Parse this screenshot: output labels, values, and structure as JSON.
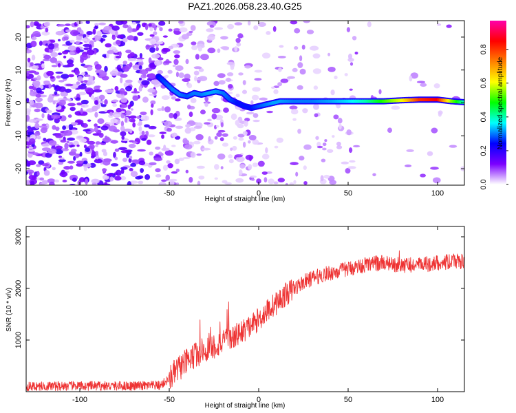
{
  "title": "PAZ1.2026.058.23.40.G25",
  "chart_data": [
    {
      "type": "heatmap",
      "xlabel": "Height of straight line (km)",
      "ylabel": "Frequency (Hz)",
      "xlim": [
        -130,
        115
      ],
      "ylim": [
        -25,
        25
      ],
      "xticks": [
        -100,
        -50,
        0,
        50,
        100
      ],
      "yticks": [
        20,
        10,
        0,
        -10,
        -20
      ],
      "colorbar": {
        "label": "Normalized spectral amplitude",
        "range": [
          0,
          0.97
        ],
        "ticks": [
          "0.0",
          "0.2",
          "0.4",
          "0.6",
          "0.8"
        ],
        "colors": [
          "#ffffff",
          "#7b00ff",
          "#0000ff",
          "#00ffff",
          "#00ff00",
          "#ffff00",
          "#ff8000",
          "#ff0000",
          "#ff00aa"
        ]
      },
      "ridge": {
        "x": [
          -56,
          -52,
          -48,
          -44,
          -40,
          -36,
          -32,
          -28,
          -24,
          -20,
          -16,
          -12,
          -8,
          -4,
          0,
          4,
          8,
          12,
          20,
          30,
          40,
          50,
          60,
          70,
          80,
          90,
          100,
          108,
          115
        ],
        "y": [
          8,
          6,
          4,
          2.5,
          2,
          3,
          2.5,
          3,
          3.5,
          3,
          1,
          0,
          -1,
          -1.5,
          -1,
          -0.5,
          0,
          0.5,
          0.5,
          0.5,
          0.5,
          0.5,
          0.5,
          0.5,
          0.8,
          1,
          1,
          0.5,
          0.2
        ],
        "amplitude": [
          0.25,
          0.28,
          0.3,
          0.3,
          0.28,
          0.3,
          0.3,
          0.32,
          0.32,
          0.3,
          0.28,
          0.25,
          0.25,
          0.25,
          0.28,
          0.3,
          0.32,
          0.32,
          0.3,
          0.3,
          0.32,
          0.35,
          0.4,
          0.5,
          0.6,
          0.8,
          0.85,
          0.55,
          0.4
        ]
      }
    },
    {
      "type": "line",
      "xlabel": "Height of straight line (km)",
      "ylabel": "SNR (10 * v/v)",
      "xlim": [
        -130,
        115
      ],
      "ylim": [
        0,
        3200
      ],
      "xticks": [
        -100,
        -50,
        0,
        50,
        100
      ],
      "yticks": [
        1000,
        2000,
        3000
      ],
      "series": [
        {
          "name": "SNR",
          "color": "#ee3333",
          "x": [
            -130,
            -110,
            -90,
            -70,
            -55,
            -50,
            -45,
            -40,
            -35,
            -30,
            -25,
            -20,
            -15,
            -10,
            -5,
            0,
            5,
            10,
            15,
            20,
            25,
            30,
            35,
            40,
            50,
            60,
            70,
            80,
            90,
            100,
            110,
            115
          ],
          "y": [
            100,
            110,
            110,
            110,
            120,
            250,
            450,
            580,
            720,
            800,
            880,
            960,
            1040,
            1150,
            1260,
            1400,
            1580,
            1720,
            1880,
            2000,
            2120,
            2200,
            2250,
            2300,
            2380,
            2460,
            2500,
            2450,
            2450,
            2500,
            2520,
            2520
          ]
        }
      ]
    }
  ]
}
